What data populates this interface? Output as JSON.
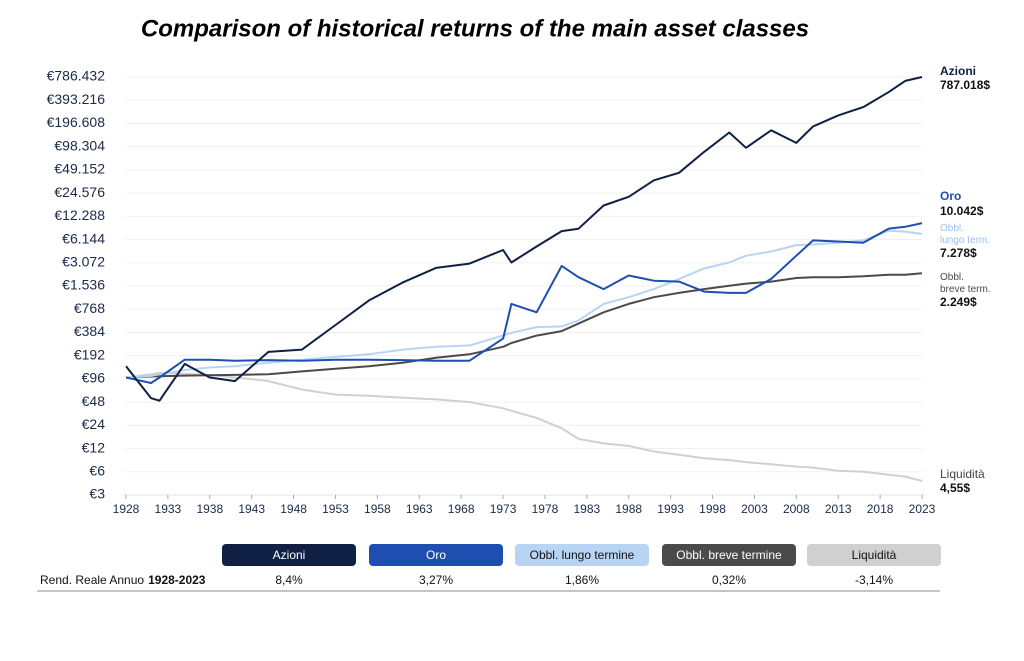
{
  "chart_data": {
    "type": "line",
    "title": "Comparison of historical returns of the main asset classes",
    "log_scale": true,
    "grid": true,
    "x": [
      1928,
      1931,
      1932,
      1935,
      1938,
      1941,
      1945,
      1949,
      1953,
      1957,
      1961,
      1965,
      1969,
      1973,
      1974,
      1977,
      1980,
      1982,
      1985,
      1988,
      1991,
      1994,
      1997,
      2000,
      2002,
      2005,
      2008,
      2010,
      2013,
      2016,
      2019,
      2021,
      2023
    ],
    "xlim": [
      1928,
      2023
    ],
    "xticks": [
      1928,
      1933,
      1938,
      1943,
      1948,
      1953,
      1958,
      1963,
      1968,
      1973,
      1978,
      1983,
      1988,
      1993,
      1998,
      2003,
      2008,
      2013,
      2018,
      2023
    ],
    "ylim": [
      3,
      786432
    ],
    "yticks": [
      {
        "value": 3,
        "label": "€3"
      },
      {
        "value": 6,
        "label": "€6"
      },
      {
        "value": 12,
        "label": "€12"
      },
      {
        "value": 24,
        "label": "€24"
      },
      {
        "value": 48,
        "label": "€48"
      },
      {
        "value": 96,
        "label": "€96"
      },
      {
        "value": 192,
        "label": "€192"
      },
      {
        "value": 384,
        "label": "€384"
      },
      {
        "value": 768,
        "label": "€768"
      },
      {
        "value": 1536,
        "label": "€1.536"
      },
      {
        "value": 3072,
        "label": "€3.072"
      },
      {
        "value": 6144,
        "label": "€6.144"
      },
      {
        "value": 12288,
        "label": "€12.288"
      },
      {
        "value": 24576,
        "label": "€24.576"
      },
      {
        "value": 49152,
        "label": "€49.152"
      },
      {
        "value": 98304,
        "label": "€98.304"
      },
      {
        "value": 196608,
        "label": "€196.608"
      },
      {
        "value": 393216,
        "label": "€393.216"
      },
      {
        "value": 786432,
        "label": "€786.432"
      }
    ],
    "returns_label": "Rend. Reale Annuo",
    "returns_period": "1928-2023",
    "series": [
      {
        "name": "Azioni",
        "end_name": "Azioni",
        "end_label": "787.018$",
        "return": "8,4%",
        "color": "#0f2044",
        "values": [
          140,
          54,
          50,
          150,
          100,
          90,
          215,
          230,
          480,
          1000,
          1700,
          2640,
          3000,
          4500,
          3100,
          5000,
          7900,
          8500,
          17000,
          22000,
          36000,
          45000,
          84000,
          150000,
          95000,
          160000,
          110000,
          180000,
          250000,
          320000,
          500000,
          700000,
          787018
        ]
      },
      {
        "name": "Oro",
        "end_name": "Oro",
        "end_label": "10.042$",
        "return": "3,27%",
        "color": "#1e4fb0",
        "values": [
          100,
          85,
          100,
          170,
          170,
          165,
          168,
          165,
          170,
          170,
          168,
          165,
          165,
          320,
          900,
          700,
          2800,
          2000,
          1400,
          2100,
          1800,
          1750,
          1300,
          1250,
          1250,
          1900,
          3800,
          6000,
          5800,
          5600,
          8500,
          9000,
          10042
        ]
      },
      {
        "name": "Obbl. lungo termine",
        "end_name": "Obbl. lungo term.",
        "end_label": "7.278$",
        "return": "1,86%",
        "color": "#b8d4f5",
        "values": [
          100,
          105,
          110,
          125,
          135,
          140,
          155,
          170,
          185,
          200,
          230,
          250,
          260,
          350,
          380,
          450,
          460,
          550,
          900,
          1100,
          1400,
          1900,
          2600,
          3100,
          3800,
          4300,
          5200,
          5300,
          5600,
          6000,
          8000,
          7800,
          7278
        ]
      },
      {
        "name": "Obbl. breve termine",
        "end_name": "Obbl. breve term.",
        "end_label": "2.249$",
        "return": "0,32%",
        "color": "#4a4a4a",
        "values": [
          100,
          103,
          104,
          106,
          107,
          108,
          110,
          120,
          130,
          140,
          155,
          180,
          200,
          250,
          280,
          350,
          400,
          500,
          700,
          900,
          1100,
          1250,
          1400,
          1550,
          1650,
          1750,
          1950,
          2000,
          2000,
          2050,
          2150,
          2150,
          2249
        ]
      },
      {
        "name": "Liquidità",
        "end_name": "Liquidità",
        "end_label": "4,55$",
        "return": "-3,14%",
        "color": "#d0d0d0",
        "values": [
          100,
          110,
          115,
          112,
          108,
          100,
          90,
          70,
          60,
          58,
          55,
          52,
          48,
          40,
          37,
          30,
          22,
          16,
          14,
          13,
          11,
          10,
          9,
          8.5,
          8,
          7.5,
          7,
          6.8,
          6.2,
          6,
          5.5,
          5.2,
          4.55
        ]
      }
    ]
  }
}
